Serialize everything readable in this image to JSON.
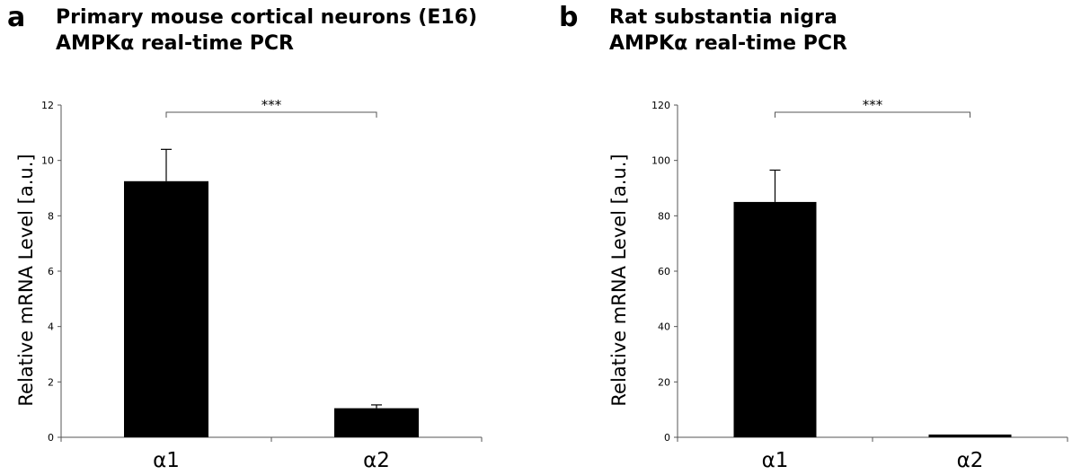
{
  "chart_data": [
    {
      "type": "bar",
      "panel_label": "a",
      "title_lines": [
        "Primary mouse cortical neurons (E16)",
        "AMPKα real-time PCR"
      ],
      "ylabel": "Relative mRNA Level [a.u.]",
      "xlabel": "",
      "categories": [
        "α1",
        "α2"
      ],
      "values": [
        9.25,
        1.05
      ],
      "errors": [
        1.15,
        0.12
      ],
      "ylim": [
        0,
        12
      ],
      "yticks": [
        "0",
        "2",
        "4",
        "6",
        "8",
        "10",
        "12"
      ],
      "significance": "***",
      "bar_color": "#000000",
      "grid": false
    },
    {
      "type": "bar",
      "panel_label": "b",
      "title_lines": [
        "Rat substantia nigra",
        "AMPKα real-time PCR"
      ],
      "ylabel": "Relative mRNA Level [a.u.]",
      "xlabel": "",
      "categories": [
        "α1",
        "α2"
      ],
      "values": [
        85,
        1
      ],
      "errors": [
        11.5,
        0
      ],
      "ylim": [
        0,
        120
      ],
      "yticks": [
        "0",
        "20",
        "40",
        "60",
        "80",
        "100",
        "120"
      ],
      "significance": "***",
      "bar_color": "#000000",
      "grid": false
    }
  ]
}
